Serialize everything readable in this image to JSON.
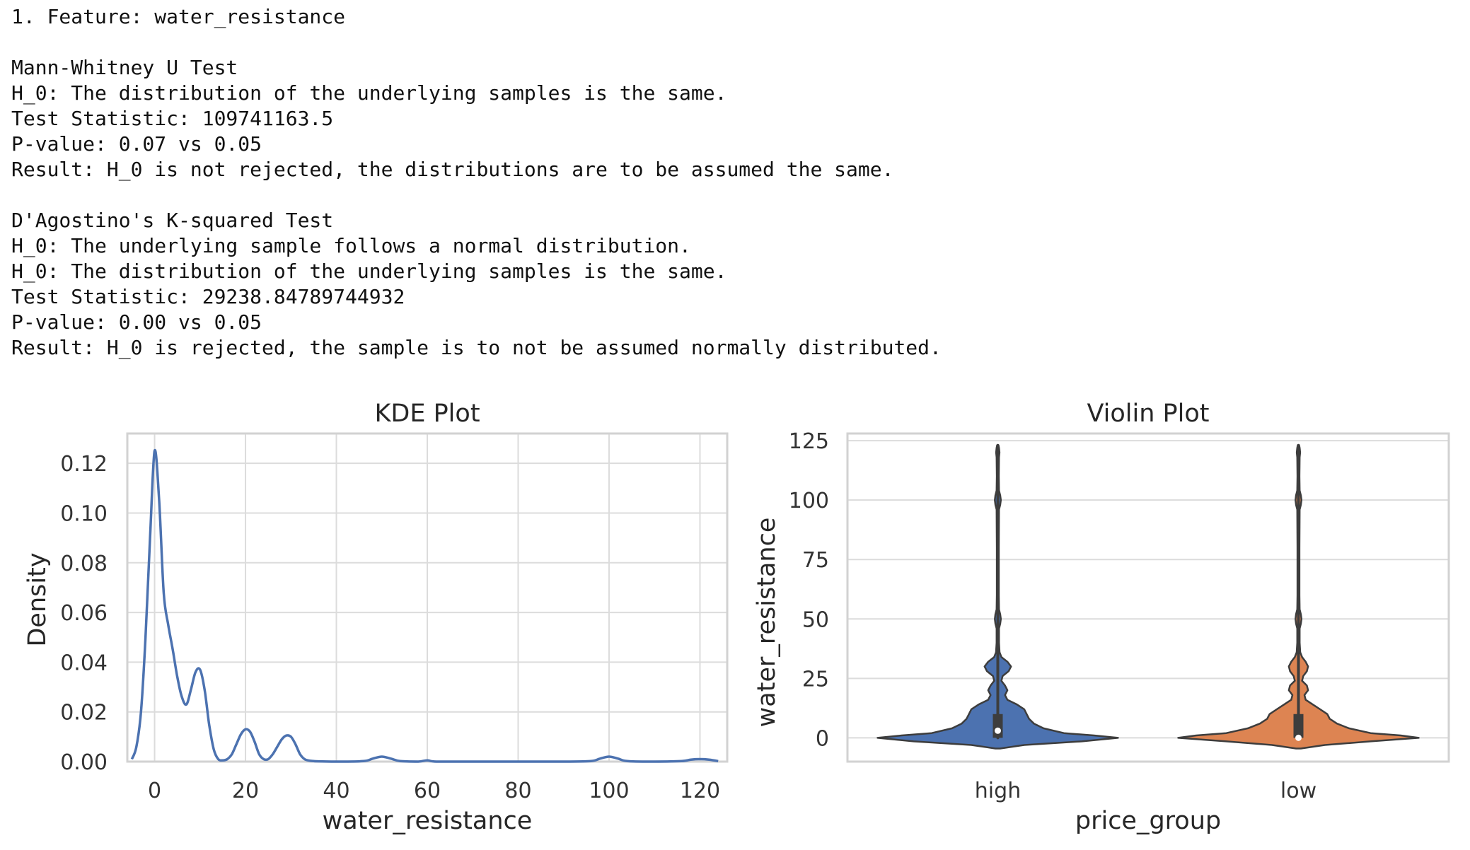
{
  "output": {
    "feature_heading": "1. Feature: water_resistance",
    "blank_1": "",
    "mw_title": "Mann-Whitney U Test",
    "mw_h0": "H_0: The distribution of the underlying samples is the same.",
    "mw_stat": "Test Statistic: 109741163.5",
    "mw_p": "P-value: 0.07 vs 0.05",
    "mw_result": "Result: H_0 is not rejected, the distributions are to be assumed the same.",
    "blank_2": "",
    "dk_title": "D'Agostino's K-squared Test",
    "dk_h0_a": "H_0: The underlying sample follows a normal distribution.",
    "dk_h0_b": "H_0: The distribution of the underlying samples is the same.",
    "dk_stat": "Test Statistic: 29238.84789744932",
    "dk_p": "P-value: 0.00 vs 0.05",
    "dk_result": "Result: H_0 is rejected, the sample is to not be assumed normally distributed."
  },
  "chart_data": [
    {
      "type": "line",
      "title": "KDE Plot",
      "xlabel": "water_resistance",
      "ylabel": "Density",
      "xlim": [
        -6,
        126
      ],
      "ylim": [
        0,
        0.132
      ],
      "xticks": [
        0,
        20,
        40,
        60,
        80,
        100,
        120
      ],
      "yticks": [
        0.0,
        0.02,
        0.04,
        0.06,
        0.08,
        0.1,
        0.12
      ],
      "ytick_labels": [
        "0.00",
        "0.02",
        "0.04",
        "0.06",
        "0.08",
        "0.10",
        "0.12"
      ],
      "grid": true,
      "color": "#4c72b0",
      "x": [
        -5,
        -4,
        -3,
        -2,
        -1,
        0,
        1,
        2,
        3,
        4,
        5,
        6,
        7,
        8,
        9,
        10,
        11,
        12,
        13,
        14,
        15,
        16,
        17,
        18,
        19,
        20,
        21,
        22,
        23,
        24,
        25,
        26,
        27,
        28,
        29,
        30,
        31,
        32,
        33,
        34,
        35,
        36,
        40,
        46,
        48,
        50,
        52,
        54,
        58,
        60,
        62,
        70,
        80,
        90,
        96,
        98,
        100,
        102,
        104,
        110,
        116,
        118,
        120,
        122,
        124
      ],
      "y": [
        0.001,
        0.006,
        0.02,
        0.05,
        0.09,
        0.125,
        0.105,
        0.068,
        0.055,
        0.045,
        0.034,
        0.026,
        0.023,
        0.029,
        0.036,
        0.037,
        0.029,
        0.015,
        0.005,
        0.001,
        0.0005,
        0.001,
        0.003,
        0.007,
        0.011,
        0.013,
        0.012,
        0.008,
        0.003,
        0.001,
        0.001,
        0.003,
        0.006,
        0.009,
        0.0105,
        0.01,
        0.007,
        0.003,
        0.001,
        0.0004,
        0.0002,
        0.0001,
        0.0,
        0.0002,
        0.0012,
        0.002,
        0.0012,
        0.0002,
        0.0,
        0.0005,
        0.0,
        0.0,
        0.0,
        0.0,
        0.0002,
        0.0012,
        0.002,
        0.0012,
        0.0002,
        0.0,
        0.0002,
        0.0008,
        0.001,
        0.0008,
        0.0002
      ]
    },
    {
      "type": "violin",
      "title": "Violin Plot",
      "xlabel": "price_group",
      "ylabel": "water_resistance",
      "categories": [
        "high",
        "low"
      ],
      "colors": [
        "#4c72b0",
        "#dd8452"
      ],
      "ylim": [
        -10,
        128
      ],
      "yticks": [
        0,
        25,
        50,
        75,
        100,
        125
      ],
      "grid": true,
      "violins": [
        {
          "name": "high",
          "profile_y": [
            -4.5,
            -3,
            -1.5,
            0,
            1,
            2,
            4,
            6,
            8,
            10,
            12,
            14,
            16,
            18,
            20,
            22,
            24,
            26,
            28,
            30,
            32,
            34,
            36,
            40,
            46,
            48,
            50,
            52,
            54,
            60,
            80,
            96,
            98,
            100,
            102,
            104,
            110,
            118,
            120,
            122,
            123
          ],
          "profile_w": [
            0.02,
            0.22,
            0.7,
            1.0,
            0.8,
            0.55,
            0.38,
            0.3,
            0.26,
            0.24,
            0.22,
            0.16,
            0.08,
            0.06,
            0.08,
            0.06,
            0.03,
            0.04,
            0.09,
            0.11,
            0.08,
            0.03,
            0.015,
            0.01,
            0.01,
            0.02,
            0.025,
            0.02,
            0.01,
            0.008,
            0.008,
            0.01,
            0.02,
            0.025,
            0.02,
            0.01,
            0.008,
            0.01,
            0.014,
            0.01,
            0.006
          ],
          "box_q1": 0,
          "box_median": 3,
          "box_q3": 10,
          "whisker_high": 123,
          "whisker_low": 0
        },
        {
          "name": "low",
          "profile_y": [
            -4.5,
            -3,
            -1.5,
            0,
            1,
            2,
            4,
            6,
            8,
            10,
            12,
            14,
            16,
            18,
            20,
            22,
            24,
            26,
            28,
            30,
            32,
            34,
            36,
            40,
            46,
            48,
            50,
            52,
            54,
            60,
            80,
            96,
            98,
            100,
            102,
            104,
            110,
            118,
            120,
            122,
            123
          ],
          "profile_w": [
            0.02,
            0.22,
            0.6,
            1.0,
            0.85,
            0.6,
            0.42,
            0.32,
            0.26,
            0.24,
            0.18,
            0.12,
            0.06,
            0.05,
            0.08,
            0.07,
            0.03,
            0.04,
            0.07,
            0.08,
            0.06,
            0.03,
            0.015,
            0.01,
            0.01,
            0.02,
            0.025,
            0.02,
            0.01,
            0.008,
            0.008,
            0.01,
            0.02,
            0.025,
            0.02,
            0.01,
            0.008,
            0.01,
            0.014,
            0.01,
            0.006
          ],
          "box_q1": 0,
          "box_median": 0,
          "box_q3": 10,
          "whisker_high": 123,
          "whisker_low": 0
        }
      ]
    }
  ]
}
